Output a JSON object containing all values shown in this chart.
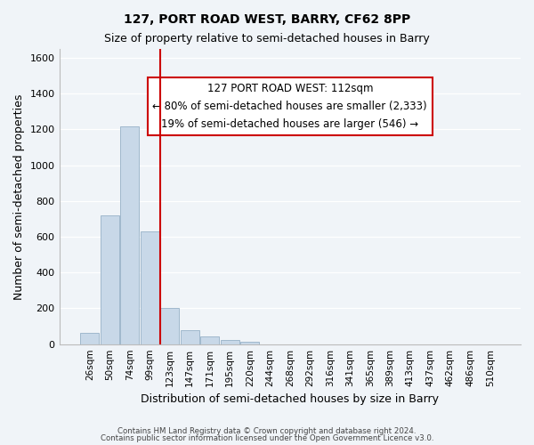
{
  "title1": "127, PORT ROAD WEST, BARRY, CF62 8PP",
  "title2": "Size of property relative to semi-detached houses in Barry",
  "xlabel": "Distribution of semi-detached houses by size in Barry",
  "ylabel": "Number of semi-detached properties",
  "bin_labels": [
    "26sqm",
    "50sqm",
    "74sqm",
    "99sqm",
    "123sqm",
    "147sqm",
    "171sqm",
    "195sqm",
    "220sqm",
    "244sqm",
    "268sqm",
    "292sqm",
    "316sqm",
    "341sqm",
    "365sqm",
    "389sqm",
    "413sqm",
    "437sqm",
    "462sqm",
    "486sqm",
    "510sqm"
  ],
  "bar_values": [
    65,
    720,
    1215,
    630,
    200,
    80,
    45,
    25,
    15,
    0,
    0,
    0,
    0,
    0,
    0,
    0,
    0,
    0,
    0,
    0,
    0
  ],
  "bar_color": "#c8d8e8",
  "bar_edge_color": "#a0b8cc",
  "vline_x": 3.5,
  "vline_color": "#cc0000",
  "annotation_title": "127 PORT ROAD WEST: 112sqm",
  "annotation_line1": "← 80% of semi-detached houses are smaller (2,333)",
  "annotation_line2": "19% of semi-detached houses are larger (546) →",
  "annotation_box_color": "#ffffff",
  "annotation_box_edge": "#cc0000",
  "ylim": [
    0,
    1650
  ],
  "yticks": [
    0,
    200,
    400,
    600,
    800,
    1000,
    1200,
    1400,
    1600
  ],
  "footer1": "Contains HM Land Registry data © Crown copyright and database right 2024.",
  "footer2": "Contains public sector information licensed under the Open Government Licence v3.0.",
  "bg_color": "#f0f4f8"
}
